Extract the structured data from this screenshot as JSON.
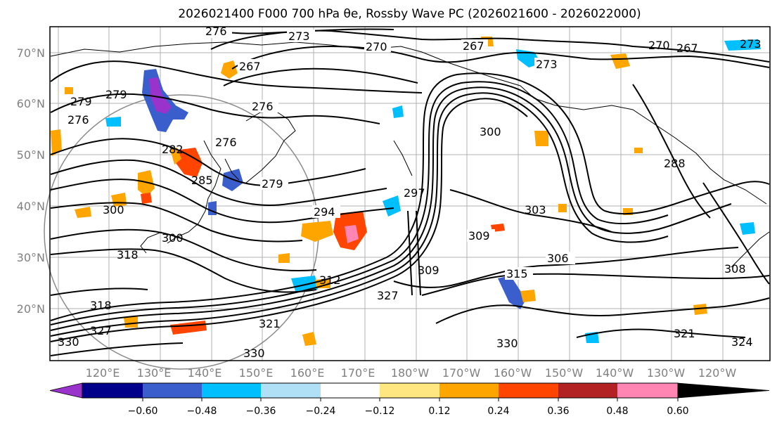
{
  "title": "2026021400 F000 700 hPa θe, Rossby Wave PC (2026021600 - 2026022000)",
  "map": {
    "lat_labels": [
      "70°N",
      "60°N",
      "50°N",
      "40°N",
      "30°N",
      "20°N"
    ],
    "lon_labels": [
      "120°E",
      "130°E",
      "140°E",
      "150°E",
      "160°E",
      "170°E",
      "180°W",
      "170°W",
      "160°W",
      "150°W",
      "140°W",
      "130°W",
      "120°W"
    ],
    "contour_labels": [
      "276",
      "273",
      "270",
      "267",
      "267",
      "270",
      "267",
      "273",
      "273",
      "279",
      "276",
      "276",
      "279",
      "276",
      "282",
      "279",
      "285",
      "297",
      "300",
      "288",
      "300",
      "294",
      "303",
      "309",
      "306",
      "318",
      "300",
      "315",
      "309",
      "312",
      "327",
      "308",
      "318",
      "321",
      "330",
      "327",
      "330",
      "321",
      "324",
      "330"
    ]
  },
  "colorbar": {
    "labels": [
      "−0.60",
      "−0.48",
      "−0.36",
      "−0.24",
      "−0.12",
      "0.12",
      "0.24",
      "0.36",
      "0.48",
      "0.60"
    ],
    "colors": [
      "#9933cc",
      "#00008b",
      "#3a5fcd",
      "#00bfff",
      "#b0e0f6",
      "#ffffff",
      "#ffe680",
      "#ffa500",
      "#ff4500",
      "#b22222",
      "#ff85b3"
    ]
  }
}
